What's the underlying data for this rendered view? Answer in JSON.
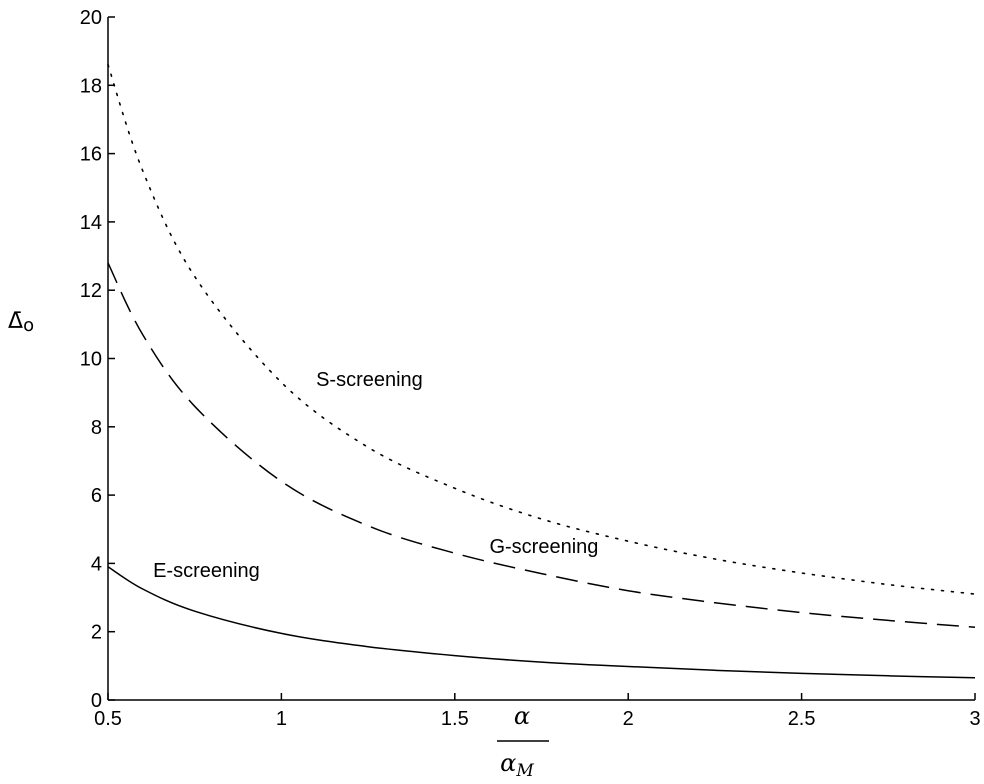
{
  "chart_data": {
    "type": "line",
    "title": "",
    "ylabel": {
      "main": "Δ̄",
      "subscript": "o"
    },
    "xlabel": {
      "numerator": "α",
      "denominator": "α",
      "denominator_subscript": "M"
    },
    "xlim": [
      0.5,
      3
    ],
    "ylim": [
      0,
      20
    ],
    "xticks": [
      0.5,
      1,
      1.5,
      2,
      2.5,
      3
    ],
    "xtick_labels": [
      "0.5",
      "1",
      "1.5",
      "2",
      "2.5",
      "3"
    ],
    "yticks": [
      0,
      2,
      4,
      6,
      8,
      10,
      12,
      14,
      16,
      18,
      20
    ],
    "ytick_labels": [
      "0",
      "2",
      "4",
      "6",
      "8",
      "10",
      "12",
      "14",
      "16",
      "18",
      "20"
    ],
    "grid": false,
    "series": [
      {
        "name": "S-screening",
        "style": "dotted",
        "x": [
          0.5,
          0.6,
          0.75,
          1.0,
          1.25,
          1.5,
          1.75,
          2.0,
          2.25,
          2.5,
          2.75,
          3.0
        ],
        "y": [
          18.6,
          15.5,
          12.4,
          9.3,
          7.4,
          6.2,
          5.3,
          4.65,
          4.13,
          3.72,
          3.38,
          3.1
        ]
      },
      {
        "name": "G-screening",
        "style": "dashed",
        "x": [
          0.5,
          0.6,
          0.75,
          1.0,
          1.25,
          1.5,
          1.75,
          2.0,
          2.25,
          2.5,
          2.75,
          3.0
        ],
        "y": [
          12.8,
          10.7,
          8.6,
          6.4,
          5.1,
          4.3,
          3.7,
          3.2,
          2.85,
          2.56,
          2.33,
          2.13
        ]
      },
      {
        "name": "E-screening",
        "style": "solid",
        "x": [
          0.5,
          0.6,
          0.75,
          1.0,
          1.25,
          1.5,
          1.75,
          2.0,
          2.25,
          2.5,
          2.75,
          3.0
        ],
        "y": [
          3.9,
          3.25,
          2.6,
          1.95,
          1.56,
          1.3,
          1.11,
          0.98,
          0.87,
          0.78,
          0.71,
          0.65
        ]
      }
    ],
    "annotations": [
      {
        "text": "S-screening",
        "x": 1.1,
        "y": 9.2
      },
      {
        "text": "G-screening",
        "x": 1.6,
        "y": 4.3
      },
      {
        "text": "E-screening",
        "x": 0.63,
        "y": 3.6
      }
    ],
    "colors": {
      "line": "#000000",
      "axis": "#000000",
      "background": "#ffffff"
    }
  }
}
